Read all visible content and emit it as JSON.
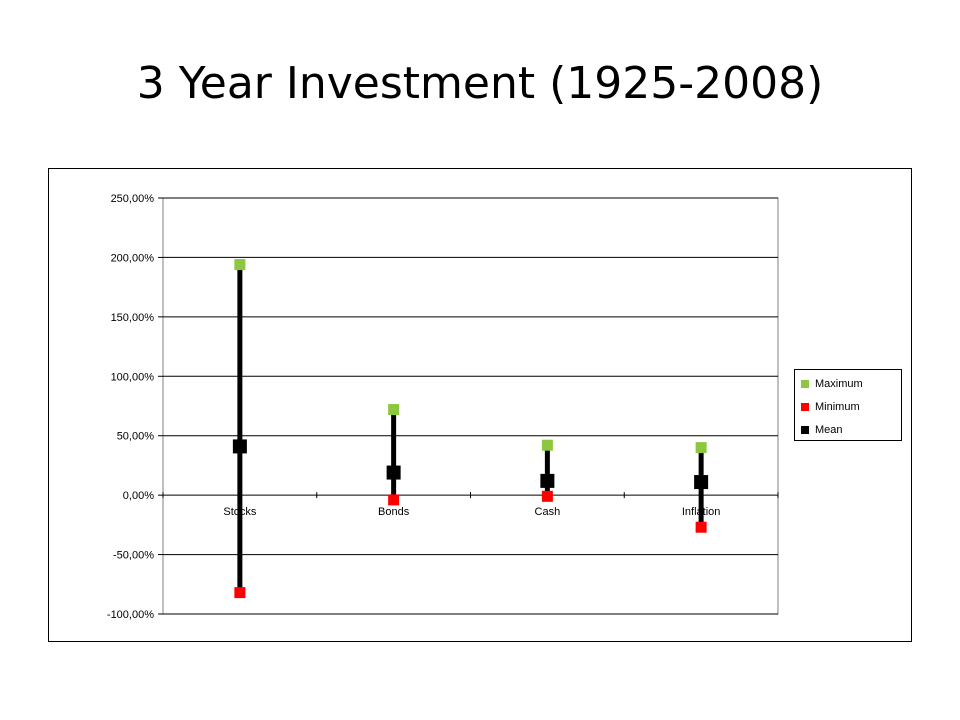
{
  "slide": {
    "title": "3 Year Investment (1925-2008)"
  },
  "chart_data": {
    "type": "scatter",
    "categories": [
      "Stocks",
      "Bonds",
      "Cash",
      "Inflation"
    ],
    "ylim": [
      -100,
      250
    ],
    "ytick_step": 50,
    "ytick_labels": [
      "250,00%",
      "200,00%",
      "150,00%",
      "100,00%",
      "50,00%",
      "0,00%",
      "-50,00%",
      "-100,00%"
    ],
    "grid": true,
    "legend": "right",
    "series": [
      {
        "name": "Maximum",
        "color": "#8dc63f",
        "values": [
          194,
          72,
          42,
          40
        ]
      },
      {
        "name": "Minimum",
        "color": "#ff0000",
        "values": [
          -82,
          -4,
          -1,
          -27
        ]
      },
      {
        "name": "Mean",
        "color": "#000000",
        "values": [
          41,
          19,
          12,
          11
        ]
      }
    ],
    "range_lines": true
  }
}
